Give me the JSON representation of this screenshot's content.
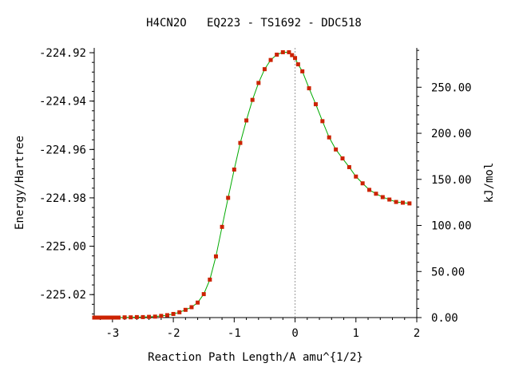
{
  "chart_data": {
    "type": "line",
    "title": "H4CN2O   EQ223 - TS1692 - DDC518",
    "xlabel": "Reaction Path Length/A amu^{1/2}",
    "ylabel": "Energy/Hartree",
    "y2label": "kJ/mol",
    "xlim": [
      -3.3,
      2.0
    ],
    "ylim": [
      -225.0295,
      -224.918
    ],
    "y2lim": [
      0.0,
      292.7
    ],
    "x_ticks": [
      -3,
      -2,
      -1,
      0,
      1,
      2
    ],
    "x_tick_labels": [
      "-3",
      "-2",
      "-1",
      "0",
      "1",
      "2"
    ],
    "y_ticks": [
      -224.92,
      -224.94,
      -224.96,
      -224.98,
      -225.0,
      -225.02
    ],
    "y_tick_labels": [
      "-224.92",
      "-224.94",
      "-224.96",
      "-224.98",
      "-225.00",
      "-225.02"
    ],
    "y2_ticks": [
      250,
      200,
      150,
      100,
      50,
      0
    ],
    "y2_tick_labels": [
      "250.00",
      "200.00",
      "150.00",
      "100.00",
      "50.00",
      "0.00"
    ],
    "ts_x": 0,
    "line_color": "#00aa00",
    "marker_color": "#cc2200",
    "ts_line_color": "#999999",
    "series": [
      {
        "x": [
          -3.3,
          -3.25,
          -3.2,
          -3.15,
          -3.1,
          -3.05,
          -3.0,
          -2.95,
          -2.9,
          -2.8,
          -2.7,
          -2.6,
          -2.5,
          -2.4,
          -2.3,
          -2.2,
          -2.1,
          -2.0,
          -1.9,
          -1.8,
          -1.7,
          -1.6,
          -1.5,
          -1.4,
          -1.3,
          -1.2,
          -1.1,
          -1.0,
          -0.9,
          -0.8,
          -0.7,
          -0.6,
          -0.5,
          -0.4,
          -0.3,
          -0.2,
          -0.1,
          -0.05,
          0.0,
          0.05,
          0.12,
          0.23,
          0.34,
          0.45,
          0.56,
          0.67,
          0.78,
          0.89,
          1.0,
          1.11,
          1.22,
          1.33,
          1.44,
          1.55,
          1.66,
          1.77,
          1.88
        ],
        "y": [
          -225.0295,
          -225.0295,
          -225.0295,
          -225.0295,
          -225.0295,
          -225.0295,
          -225.0295,
          -225.0295,
          -225.0295,
          -225.0294,
          -225.0294,
          -225.0293,
          -225.0293,
          -225.0292,
          -225.0291,
          -225.0288,
          -225.0285,
          -225.028,
          -225.0273,
          -225.0263,
          -225.0252,
          -225.0233,
          -225.0198,
          -225.0138,
          -225.0042,
          -224.992,
          -224.98,
          -224.9683,
          -224.9573,
          -224.948,
          -224.9395,
          -224.9325,
          -224.9268,
          -224.923,
          -224.9208,
          -224.9198,
          -224.9198,
          -224.921,
          -224.9222,
          -224.9248,
          -224.9277,
          -224.9347,
          -224.9413,
          -224.9483,
          -224.955,
          -224.96,
          -224.9637,
          -224.9673,
          -224.9712,
          -224.974,
          -224.9767,
          -224.9783,
          -224.9797,
          -224.9807,
          -224.9817,
          -224.982,
          -224.9823
        ]
      }
    ]
  }
}
